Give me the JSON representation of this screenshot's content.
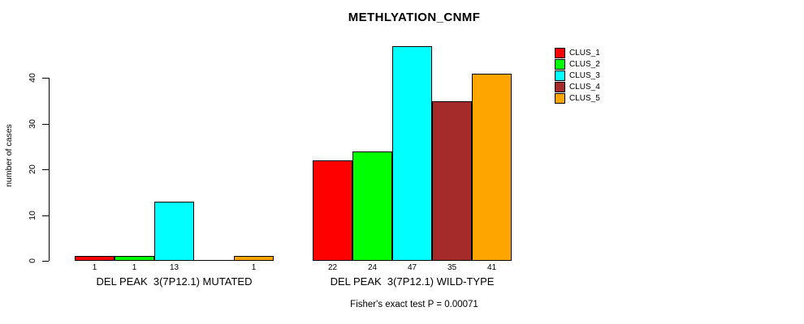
{
  "title": "METHLYATION_CNMF",
  "y_axis": {
    "label": "number of cases"
  },
  "footer": "Fisher's exact test P = 0.00071",
  "chart_data": {
    "type": "bar",
    "title": "METHLYATION_CNMF",
    "xlabel": "",
    "ylabel": "number of cases",
    "yticks": [
      0,
      10,
      20,
      30,
      40
    ],
    "ylim": [
      0,
      47
    ],
    "grid": false,
    "legend_position": "top-right",
    "categories": [
      "DEL PEAK  3(7P12.1) MUTATED",
      "DEL PEAK  3(7P12.1) WILD-TYPE"
    ],
    "series": [
      {
        "name": "CLUS_1",
        "color": "#FF0000",
        "values": [
          1,
          22
        ]
      },
      {
        "name": "CLUS_2",
        "color": "#00FF00",
        "values": [
          1,
          24
        ]
      },
      {
        "name": "CLUS_3",
        "color": "#00FFFF",
        "values": [
          13,
          47
        ]
      },
      {
        "name": "CLUS_4",
        "color": "#A52A2A",
        "values": [
          0,
          35
        ]
      },
      {
        "name": "CLUS_5",
        "color": "#FFA500",
        "values": [
          1,
          41
        ]
      }
    ],
    "bar_value_labels": [
      [
        "1",
        "1",
        "13",
        "",
        "1"
      ],
      [
        "22",
        "24",
        "47",
        "35",
        "41"
      ]
    ],
    "annotation": "Fisher's exact test P = 0.00071"
  }
}
